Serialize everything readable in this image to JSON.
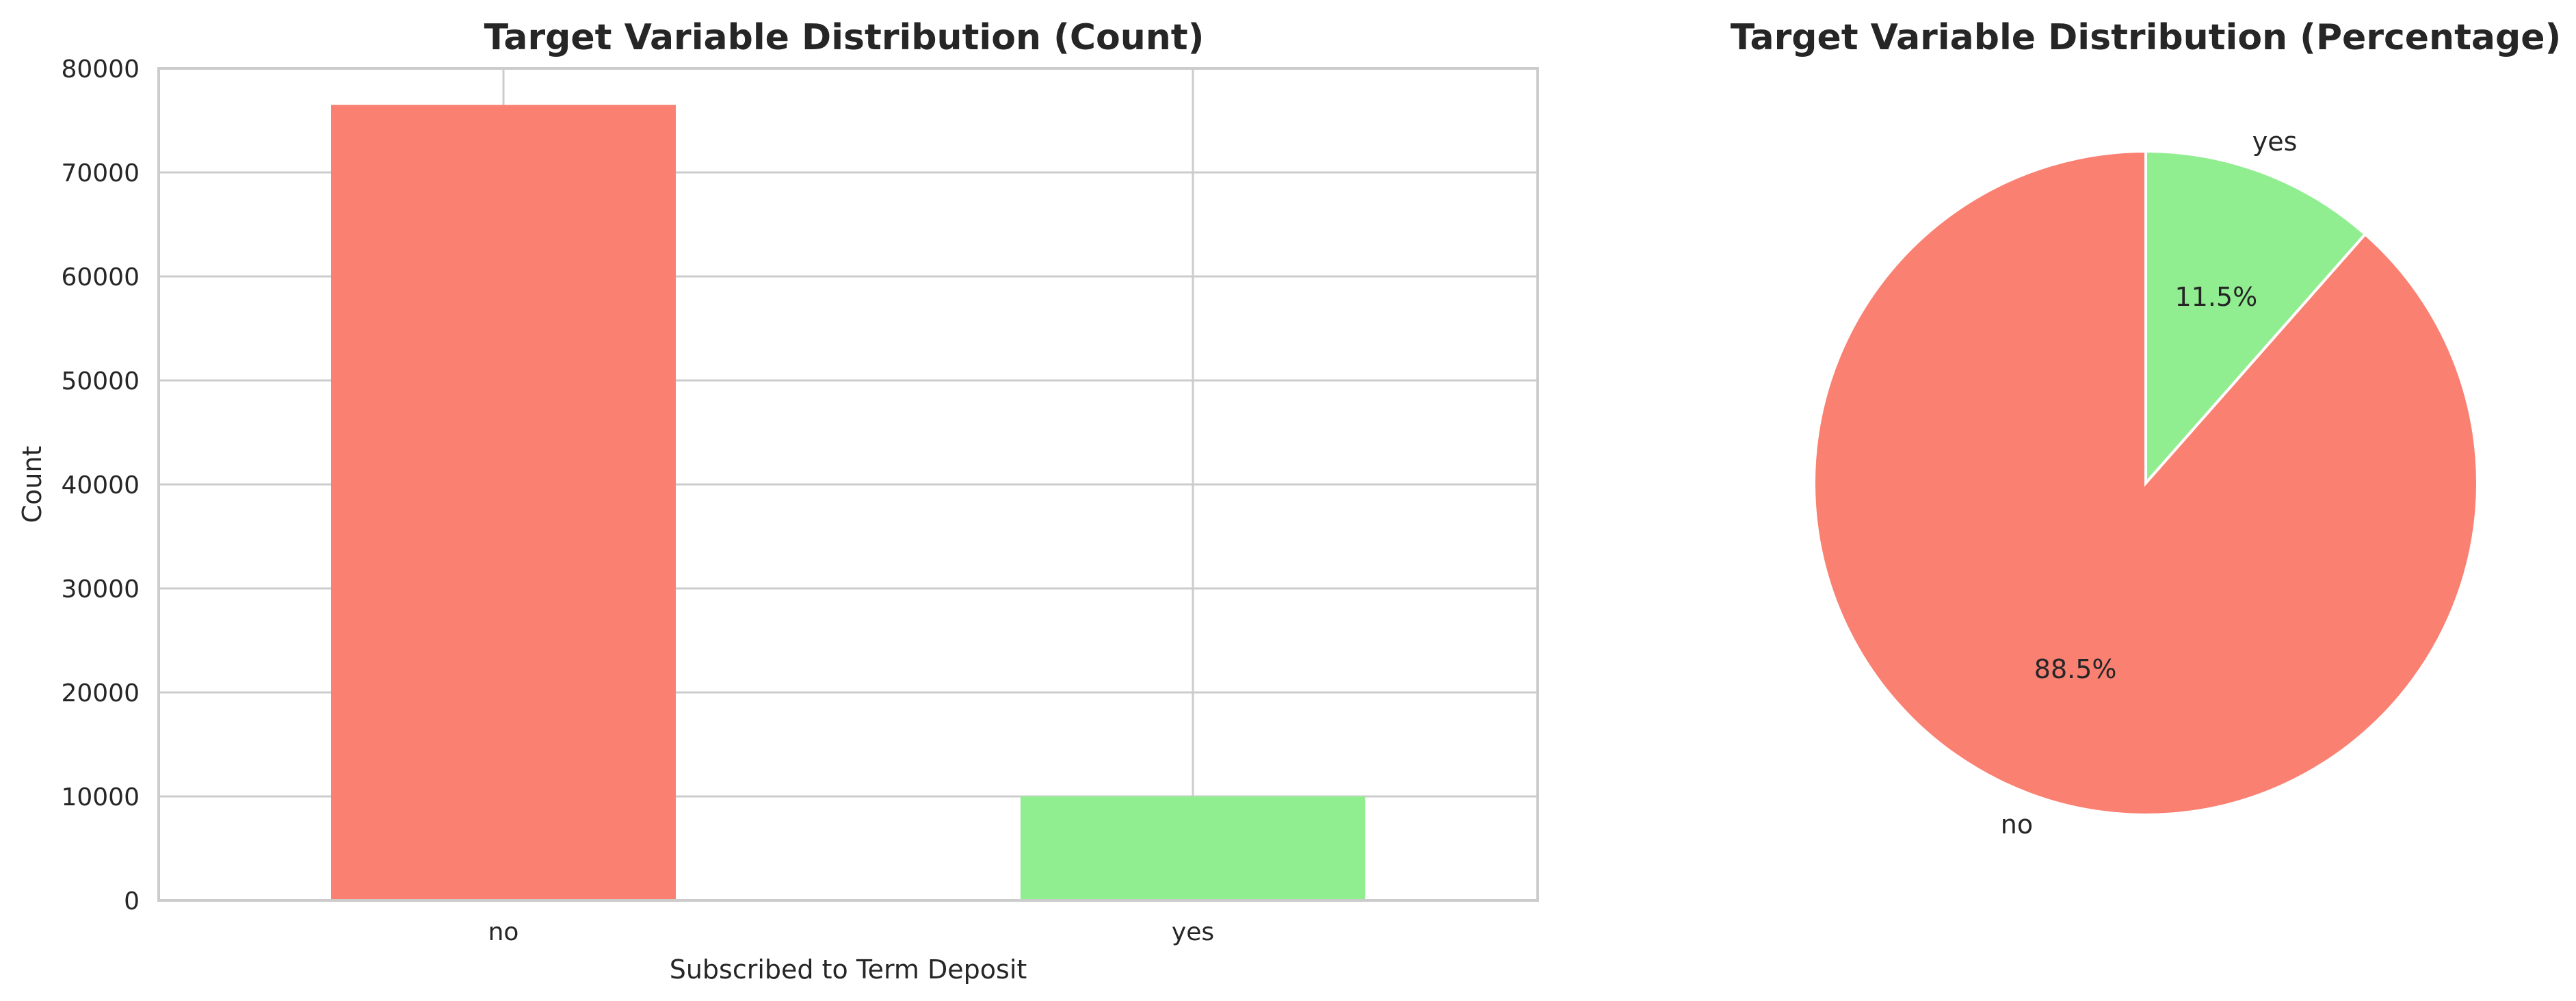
{
  "chart_data": [
    {
      "type": "bar",
      "title": "Target Variable Distribution (Count)",
      "xlabel": "Subscribed to Term Deposit",
      "ylabel": "Count",
      "categories": [
        "no",
        "yes"
      ],
      "values": [
        76500,
        10000
      ],
      "ylim": [
        0,
        80000
      ],
      "yticks": [
        0,
        10000,
        20000,
        30000,
        40000,
        50000,
        60000,
        70000,
        80000
      ],
      "colors": [
        "#FA8072",
        "#90EE90"
      ],
      "grid": true,
      "legend": "none"
    },
    {
      "type": "pie",
      "title": "Target Variable Distribution (Percentage)",
      "labels": [
        "no",
        "yes"
      ],
      "values": [
        88.5,
        11.5
      ],
      "pct_labels": [
        "88.5%",
        "11.5%"
      ],
      "colors": [
        "#FA8072",
        "#90EE90"
      ],
      "legend": "none"
    }
  ]
}
